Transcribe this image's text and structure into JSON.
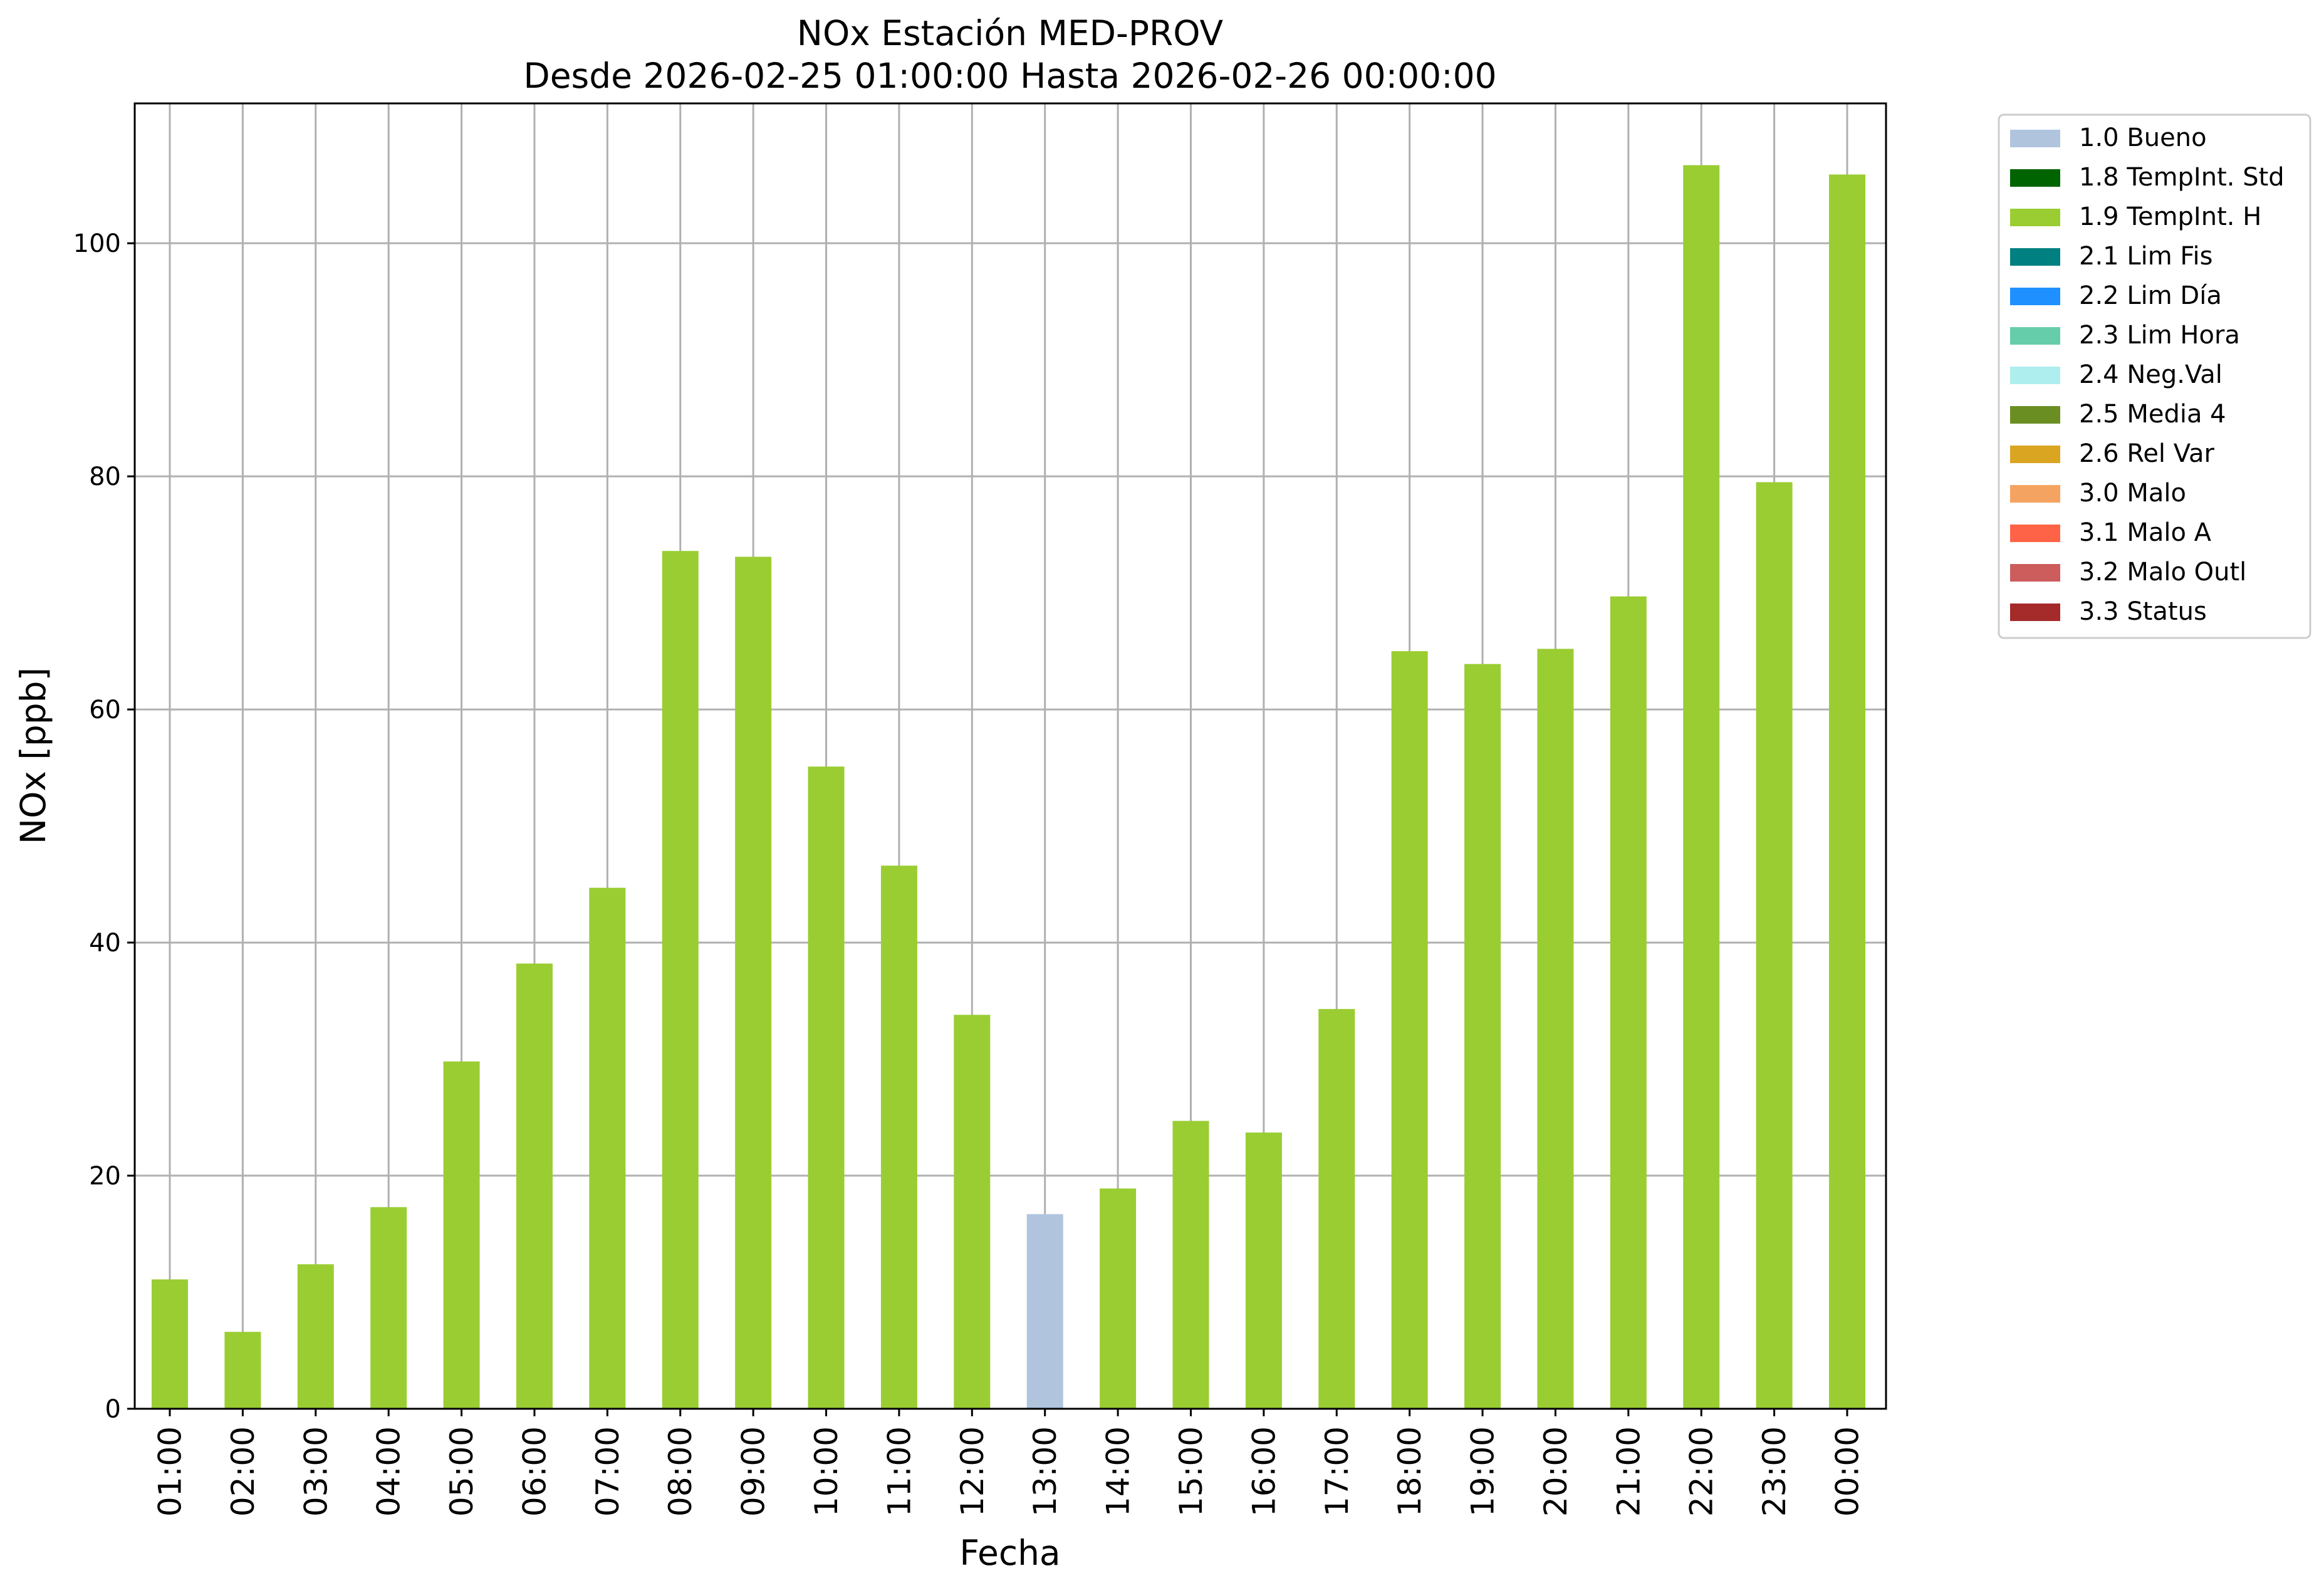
{
  "chart_data": {
    "type": "bar",
    "title": "NOx Estación MED-PROV",
    "subtitle": "Desde 2026-02-25 01:00:00 Hasta 2026-02-26 00:00:00",
    "xlabel": "Fecha",
    "ylabel": "NOx [ppb]",
    "ylim": [
      0,
      112
    ],
    "yticks": [
      0,
      20,
      40,
      60,
      80,
      100
    ],
    "grid": true,
    "legend_position": "outside-top-right",
    "categories": [
      "01:00",
      "02:00",
      "03:00",
      "04:00",
      "05:00",
      "06:00",
      "07:00",
      "08:00",
      "09:00",
      "10:00",
      "11:00",
      "12:00",
      "13:00",
      "14:00",
      "15:00",
      "16:00",
      "17:00",
      "18:00",
      "19:00",
      "20:00",
      "21:00",
      "22:00",
      "23:00",
      "00:00"
    ],
    "values": [
      11.1,
      6.6,
      12.4,
      17.3,
      29.8,
      38.2,
      44.7,
      73.6,
      73.1,
      55.1,
      46.6,
      33.8,
      16.7,
      18.9,
      24.7,
      23.7,
      34.3,
      65.0,
      63.9,
      65.2,
      69.7,
      106.7,
      79.5,
      105.9
    ],
    "flags": [
      "1.9",
      "1.9",
      "1.9",
      "1.9",
      "1.9",
      "1.9",
      "1.9",
      "1.9",
      "1.9",
      "1.9",
      "1.9",
      "1.9",
      "1.0",
      "1.9",
      "1.9",
      "1.9",
      "1.9",
      "1.9",
      "1.9",
      "1.9",
      "1.9",
      "1.9",
      "1.9",
      "1.9"
    ],
    "legend": [
      {
        "code": "1.0",
        "label": "1.0 Bueno",
        "color": "#b0c4de"
      },
      {
        "code": "1.8",
        "label": "1.8 TempInt. Std",
        "color": "#006400"
      },
      {
        "code": "1.9",
        "label": "1.9 TempInt. H",
        "color": "#9acd32"
      },
      {
        "code": "2.1",
        "label": "2.1 Lim Fis",
        "color": "#008080"
      },
      {
        "code": "2.2",
        "label": "2.2 Lim Día",
        "color": "#1e90ff"
      },
      {
        "code": "2.3",
        "label": "2.3 Lim Hora",
        "color": "#66cdaa"
      },
      {
        "code": "2.4",
        "label": "2.4 Neg.Val",
        "color": "#afeeee"
      },
      {
        "code": "2.5",
        "label": "2.5 Media 4",
        "color": "#6b8e23"
      },
      {
        "code": "2.6",
        "label": "2.6 Rel Var",
        "color": "#daa520"
      },
      {
        "code": "3.0",
        "label": "3.0 Malo",
        "color": "#f4a460"
      },
      {
        "code": "3.1",
        "label": "3.1 Malo A",
        "color": "#ff6347"
      },
      {
        "code": "3.2",
        "label": "3.2 Malo Outl",
        "color": "#cd5c5c"
      },
      {
        "code": "3.3",
        "label": "3.3 Status",
        "color": "#a52a2a"
      }
    ]
  }
}
